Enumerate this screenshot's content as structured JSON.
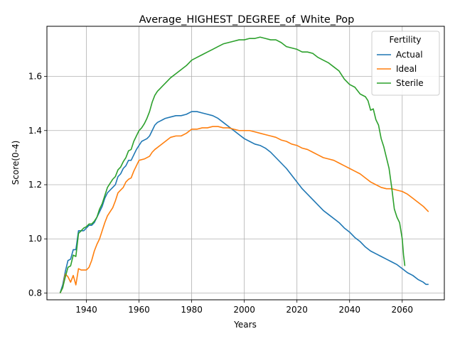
{
  "chart_data": {
    "type": "line",
    "title": "Average_HIGHEST_DEGREE_of_White_Pop",
    "xlabel": "Years",
    "ylabel": "Score(0-4)",
    "xlim": [
      1925,
      2076
    ],
    "ylim": [
      0.775,
      1.785
    ],
    "xticks": [
      1940,
      1960,
      1980,
      2000,
      2020,
      2040,
      2060
    ],
    "yticks": [
      0.8,
      1.0,
      1.2,
      1.4,
      1.6
    ],
    "grid": true,
    "legend": {
      "title": "Fertility",
      "position": "top-right"
    },
    "series": [
      {
        "name": "Actual",
        "color": "#1f77b4",
        "points": [
          [
            1930,
            0.8
          ],
          [
            1931,
            0.83
          ],
          [
            1932,
            0.88
          ],
          [
            1933,
            0.92
          ],
          [
            1934,
            0.925
          ],
          [
            1935,
            0.96
          ],
          [
            1936,
            0.96
          ],
          [
            1937,
            1.03
          ],
          [
            1938,
            1.03
          ],
          [
            1939,
            1.03
          ],
          [
            1940,
            1.04
          ],
          [
            1941,
            1.05
          ],
          [
            1942,
            1.05
          ],
          [
            1943,
            1.06
          ],
          [
            1944,
            1.08
          ],
          [
            1945,
            1.1
          ],
          [
            1946,
            1.12
          ],
          [
            1947,
            1.15
          ],
          [
            1948,
            1.17
          ],
          [
            1949,
            1.18
          ],
          [
            1950,
            1.19
          ],
          [
            1951,
            1.2
          ],
          [
            1952,
            1.23
          ],
          [
            1953,
            1.24
          ],
          [
            1954,
            1.26
          ],
          [
            1955,
            1.27
          ],
          [
            1956,
            1.29
          ],
          [
            1957,
            1.29
          ],
          [
            1958,
            1.31
          ],
          [
            1959,
            1.33
          ],
          [
            1960,
            1.345
          ],
          [
            1961,
            1.36
          ],
          [
            1962,
            1.365
          ],
          [
            1963,
            1.37
          ],
          [
            1964,
            1.38
          ],
          [
            1965,
            1.4
          ],
          [
            1966,
            1.42
          ],
          [
            1967,
            1.43
          ],
          [
            1968,
            1.435
          ],
          [
            1969,
            1.44
          ],
          [
            1970,
            1.445
          ],
          [
            1972,
            1.45
          ],
          [
            1974,
            1.455
          ],
          [
            1976,
            1.455
          ],
          [
            1978,
            1.46
          ],
          [
            1980,
            1.47
          ],
          [
            1982,
            1.47
          ],
          [
            1984,
            1.465
          ],
          [
            1986,
            1.46
          ],
          [
            1988,
            1.455
          ],
          [
            1990,
            1.445
          ],
          [
            1992,
            1.43
          ],
          [
            1994,
            1.415
          ],
          [
            1996,
            1.4
          ],
          [
            1998,
            1.385
          ],
          [
            2000,
            1.37
          ],
          [
            2002,
            1.36
          ],
          [
            2004,
            1.35
          ],
          [
            2006,
            1.345
          ],
          [
            2008,
            1.335
          ],
          [
            2010,
            1.32
          ],
          [
            2012,
            1.3
          ],
          [
            2014,
            1.28
          ],
          [
            2016,
            1.26
          ],
          [
            2018,
            1.235
          ],
          [
            2020,
            1.21
          ],
          [
            2022,
            1.185
          ],
          [
            2024,
            1.165
          ],
          [
            2026,
            1.145
          ],
          [
            2028,
            1.125
          ],
          [
            2030,
            1.105
          ],
          [
            2032,
            1.09
          ],
          [
            2034,
            1.075
          ],
          [
            2036,
            1.06
          ],
          [
            2038,
            1.04
          ],
          [
            2040,
            1.025
          ],
          [
            2042,
            1.005
          ],
          [
            2044,
            0.99
          ],
          [
            2046,
            0.97
          ],
          [
            2048,
            0.955
          ],
          [
            2050,
            0.945
          ],
          [
            2052,
            0.935
          ],
          [
            2054,
            0.925
          ],
          [
            2056,
            0.915
          ],
          [
            2058,
            0.905
          ],
          [
            2060,
            0.89
          ],
          [
            2062,
            0.875
          ],
          [
            2064,
            0.865
          ],
          [
            2066,
            0.85
          ],
          [
            2068,
            0.84
          ],
          [
            2069,
            0.832
          ],
          [
            2070,
            0.832
          ]
        ]
      },
      {
        "name": "Ideal",
        "color": "#ff7f0e",
        "points": [
          [
            1930,
            0.8
          ],
          [
            1931,
            0.82
          ],
          [
            1932,
            0.87
          ],
          [
            1933,
            0.86
          ],
          [
            1934,
            0.84
          ],
          [
            1935,
            0.865
          ],
          [
            1936,
            0.83
          ],
          [
            1937,
            0.89
          ],
          [
            1938,
            0.885
          ],
          [
            1939,
            0.885
          ],
          [
            1940,
            0.885
          ],
          [
            1941,
            0.895
          ],
          [
            1942,
            0.92
          ],
          [
            1943,
            0.955
          ],
          [
            1944,
            0.98
          ],
          [
            1945,
            1.0
          ],
          [
            1946,
            1.03
          ],
          [
            1947,
            1.06
          ],
          [
            1948,
            1.085
          ],
          [
            1949,
            1.1
          ],
          [
            1950,
            1.115
          ],
          [
            1951,
            1.14
          ],
          [
            1952,
            1.17
          ],
          [
            1953,
            1.18
          ],
          [
            1954,
            1.19
          ],
          [
            1955,
            1.21
          ],
          [
            1956,
            1.22
          ],
          [
            1957,
            1.225
          ],
          [
            1958,
            1.25
          ],
          [
            1959,
            1.27
          ],
          [
            1960,
            1.29
          ],
          [
            1962,
            1.295
          ],
          [
            1964,
            1.305
          ],
          [
            1965,
            1.32
          ],
          [
            1966,
            1.33
          ],
          [
            1968,
            1.345
          ],
          [
            1970,
            1.36
          ],
          [
            1972,
            1.375
          ],
          [
            1974,
            1.38
          ],
          [
            1976,
            1.38
          ],
          [
            1978,
            1.39
          ],
          [
            1980,
            1.405
          ],
          [
            1982,
            1.405
          ],
          [
            1984,
            1.41
          ],
          [
            1986,
            1.41
          ],
          [
            1988,
            1.415
          ],
          [
            1990,
            1.415
          ],
          [
            1992,
            1.41
          ],
          [
            1994,
            1.41
          ],
          [
            1996,
            1.405
          ],
          [
            1998,
            1.4
          ],
          [
            2000,
            1.4
          ],
          [
            2002,
            1.4
          ],
          [
            2004,
            1.395
          ],
          [
            2006,
            1.39
          ],
          [
            2008,
            1.385
          ],
          [
            2010,
            1.38
          ],
          [
            2012,
            1.375
          ],
          [
            2014,
            1.365
          ],
          [
            2016,
            1.36
          ],
          [
            2018,
            1.35
          ],
          [
            2020,
            1.345
          ],
          [
            2022,
            1.335
          ],
          [
            2024,
            1.33
          ],
          [
            2026,
            1.32
          ],
          [
            2028,
            1.31
          ],
          [
            2030,
            1.3
          ],
          [
            2032,
            1.295
          ],
          [
            2034,
            1.29
          ],
          [
            2036,
            1.28
          ],
          [
            2038,
            1.27
          ],
          [
            2040,
            1.26
          ],
          [
            2042,
            1.25
          ],
          [
            2044,
            1.24
          ],
          [
            2046,
            1.225
          ],
          [
            2048,
            1.21
          ],
          [
            2050,
            1.2
          ],
          [
            2052,
            1.19
          ],
          [
            2054,
            1.185
          ],
          [
            2056,
            1.185
          ],
          [
            2058,
            1.18
          ],
          [
            2060,
            1.175
          ],
          [
            2062,
            1.165
          ],
          [
            2064,
            1.15
          ],
          [
            2066,
            1.135
          ],
          [
            2068,
            1.12
          ],
          [
            2070,
            1.1
          ]
        ]
      },
      {
        "name": "Sterile",
        "color": "#2ca02c",
        "points": [
          [
            1930,
            0.8
          ],
          [
            1931,
            0.82
          ],
          [
            1932,
            0.86
          ],
          [
            1933,
            0.895
          ],
          [
            1934,
            0.9
          ],
          [
            1935,
            0.94
          ],
          [
            1936,
            0.935
          ],
          [
            1937,
            1.02
          ],
          [
            1938,
            1.03
          ],
          [
            1939,
            1.04
          ],
          [
            1940,
            1.045
          ],
          [
            1941,
            1.055
          ],
          [
            1942,
            1.055
          ],
          [
            1943,
            1.065
          ],
          [
            1944,
            1.08
          ],
          [
            1945,
            1.11
          ],
          [
            1946,
            1.13
          ],
          [
            1947,
            1.16
          ],
          [
            1948,
            1.19
          ],
          [
            1949,
            1.205
          ],
          [
            1950,
            1.22
          ],
          [
            1951,
            1.23
          ],
          [
            1952,
            1.255
          ],
          [
            1953,
            1.265
          ],
          [
            1954,
            1.285
          ],
          [
            1955,
            1.3
          ],
          [
            1956,
            1.325
          ],
          [
            1957,
            1.33
          ],
          [
            1958,
            1.36
          ],
          [
            1959,
            1.38
          ],
          [
            1960,
            1.4
          ],
          [
            1961,
            1.41
          ],
          [
            1962,
            1.425
          ],
          [
            1963,
            1.445
          ],
          [
            1964,
            1.47
          ],
          [
            1965,
            1.505
          ],
          [
            1966,
            1.53
          ],
          [
            1967,
            1.545
          ],
          [
            1968,
            1.555
          ],
          [
            1969,
            1.565
          ],
          [
            1970,
            1.575
          ],
          [
            1972,
            1.595
          ],
          [
            1974,
            1.61
          ],
          [
            1976,
            1.625
          ],
          [
            1978,
            1.64
          ],
          [
            1980,
            1.66
          ],
          [
            1982,
            1.67
          ],
          [
            1984,
            1.68
          ],
          [
            1986,
            1.69
          ],
          [
            1988,
            1.7
          ],
          [
            1990,
            1.71
          ],
          [
            1992,
            1.72
          ],
          [
            1994,
            1.725
          ],
          [
            1996,
            1.73
          ],
          [
            1998,
            1.735
          ],
          [
            2000,
            1.735
          ],
          [
            2002,
            1.74
          ],
          [
            2004,
            1.74
          ],
          [
            2006,
            1.745
          ],
          [
            2008,
            1.74
          ],
          [
            2010,
            1.735
          ],
          [
            2012,
            1.735
          ],
          [
            2014,
            1.725
          ],
          [
            2016,
            1.71
          ],
          [
            2018,
            1.705
          ],
          [
            2020,
            1.7
          ],
          [
            2022,
            1.69
          ],
          [
            2024,
            1.69
          ],
          [
            2026,
            1.685
          ],
          [
            2028,
            1.67
          ],
          [
            2030,
            1.66
          ],
          [
            2032,
            1.65
          ],
          [
            2034,
            1.635
          ],
          [
            2036,
            1.62
          ],
          [
            2038,
            1.59
          ],
          [
            2040,
            1.57
          ],
          [
            2042,
            1.56
          ],
          [
            2044,
            1.535
          ],
          [
            2046,
            1.525
          ],
          [
            2047,
            1.51
          ],
          [
            2048,
            1.475
          ],
          [
            2049,
            1.48
          ],
          [
            2050,
            1.44
          ],
          [
            2051,
            1.42
          ],
          [
            2052,
            1.37
          ],
          [
            2053,
            1.34
          ],
          [
            2054,
            1.3
          ],
          [
            2055,
            1.26
          ],
          [
            2056,
            1.19
          ],
          [
            2057,
            1.11
          ],
          [
            2058,
            1.08
          ],
          [
            2059,
            1.06
          ],
          [
            2060,
            1.0
          ],
          [
            2060.5,
            0.94
          ],
          [
            2061,
            0.9
          ]
        ]
      }
    ]
  }
}
